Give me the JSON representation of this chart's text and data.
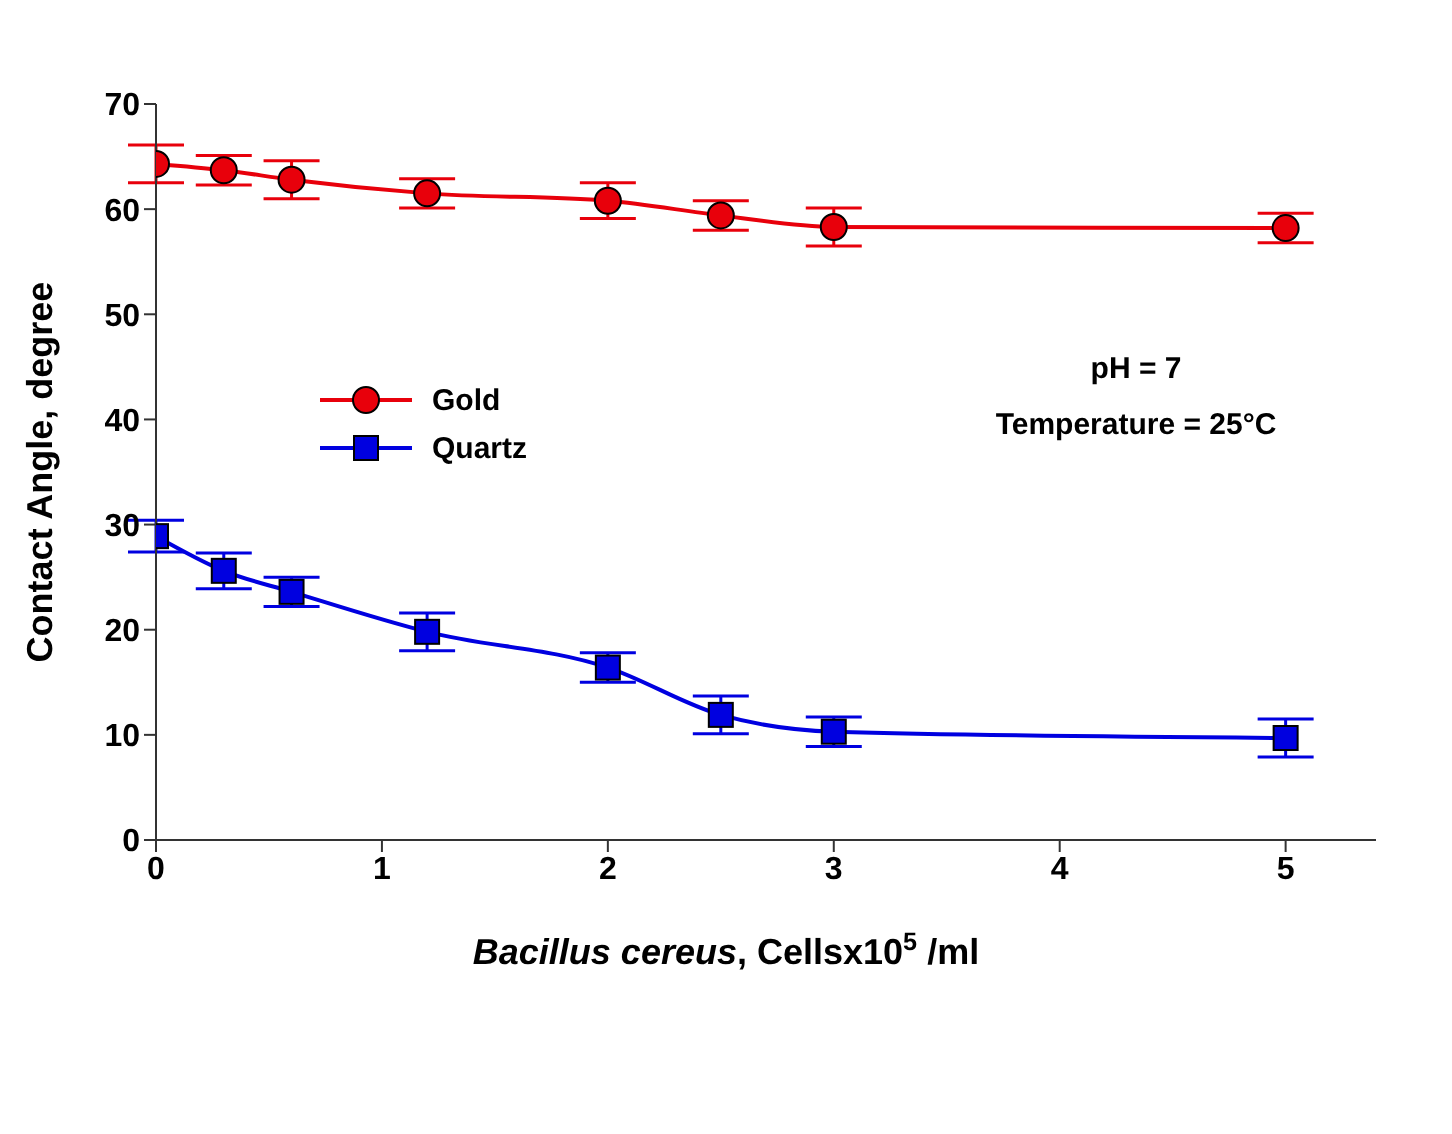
{
  "chart_data": {
    "type": "line",
    "xlabel": "Bacillus cereus, Cellsx10$^{5}$ /ml",
    "ylabel": "Contact Angle, degree",
    "x": [
      0,
      0.3,
      0.6,
      1.2,
      2,
      2.5,
      3,
      5
    ],
    "series": [
      {
        "name": "Gold",
        "color": "#e8000b",
        "marker": "circle",
        "values": [
          64.3,
          63.7,
          62.8,
          61.5,
          60.8,
          59.4,
          58.3,
          58.2
        ],
        "errors": [
          1.8,
          1.4,
          1.8,
          1.4,
          1.7,
          1.4,
          1.8,
          1.4
        ]
      },
      {
        "name": "Quartz",
        "color": "#0000e0",
        "marker": "square",
        "values": [
          28.9,
          25.6,
          23.6,
          19.8,
          16.4,
          11.9,
          10.3,
          9.7
        ],
        "errors": [
          1.5,
          1.7,
          1.4,
          1.8,
          1.4,
          1.8,
          1.4,
          1.8
        ]
      }
    ],
    "xlim": [
      0,
      5.4
    ],
    "xticks": [
      0,
      1,
      2,
      3,
      4,
      5
    ],
    "ylim": [
      0,
      70
    ],
    "yticks": [
      0,
      10,
      20,
      30,
      40,
      50,
      60,
      70
    ],
    "grid": false,
    "legend": "left",
    "annotations": [
      "pH = 7",
      "Temperature = 25°C"
    ]
  }
}
